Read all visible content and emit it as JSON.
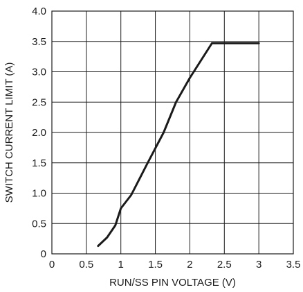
{
  "chart_data": {
    "type": "line",
    "xlabel": "RUN/SS PIN VOLTAGE (V)",
    "ylabel": "SWITCH CURRENT LIMIT (A)",
    "xlim": [
      0,
      3.5
    ],
    "ylim": [
      0,
      4.0
    ],
    "x_ticks": [
      "0",
      "0.5",
      "1",
      "1.5",
      "2",
      "2.5",
      "3",
      "3.5"
    ],
    "y_ticks": [
      "0",
      "0.5",
      "1.0",
      "1.5",
      "2.0",
      "2.5",
      "3.0",
      "3.5",
      "4.0"
    ],
    "grid": true,
    "series": [
      {
        "x": [
          0.67,
          0.8,
          0.92,
          1.0,
          1.15,
          1.38,
          1.62,
          1.8,
          2.0,
          2.32,
          3.0
        ],
        "y": [
          0.13,
          0.27,
          0.47,
          0.75,
          0.97,
          1.48,
          2.0,
          2.5,
          2.9,
          3.47,
          3.47
        ]
      }
    ],
    "colors": {
      "line": "#1a1a1a",
      "grid": "#1a1a1a"
    }
  }
}
